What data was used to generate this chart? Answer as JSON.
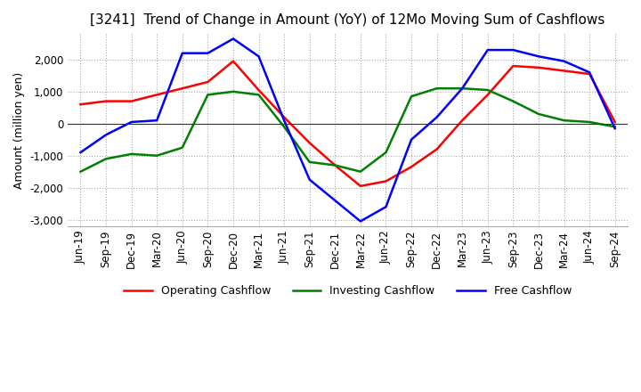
{
  "title": "[3241]  Trend of Change in Amount (YoY) of 12Mo Moving Sum of Cashflows",
  "ylabel": "Amount (million yen)",
  "ylim": [
    -3200,
    2800
  ],
  "yticks": [
    -3000,
    -2000,
    -1000,
    0,
    1000,
    2000
  ],
  "background_color": "#ffffff",
  "grid_color": "#aaaaaa",
  "x_labels": [
    "Jun-19",
    "Sep-19",
    "Dec-19",
    "Mar-20",
    "Jun-20",
    "Sep-20",
    "Dec-20",
    "Mar-21",
    "Jun-21",
    "Sep-21",
    "Dec-21",
    "Mar-22",
    "Jun-22",
    "Sep-22",
    "Dec-22",
    "Mar-23",
    "Jun-23",
    "Sep-23",
    "Dec-23",
    "Mar-24",
    "Jun-24",
    "Sep-24"
  ],
  "operating": [
    600,
    700,
    700,
    900,
    1100,
    1300,
    1950,
    1050,
    200,
    -600,
    -1300,
    -1950,
    -1800,
    -1350,
    -800,
    100,
    900,
    1800,
    1750,
    1650,
    1550,
    50
  ],
  "investing": [
    -1500,
    -1100,
    -950,
    -1000,
    -750,
    900,
    1000,
    900,
    -100,
    -1200,
    -1300,
    -1500,
    -900,
    850,
    1100,
    1100,
    1050,
    700,
    300,
    100,
    50,
    -100
  ],
  "free": [
    -900,
    -350,
    50,
    100,
    2200,
    2200,
    2650,
    2100,
    100,
    -1750,
    -2400,
    -3050,
    -2600,
    -500,
    200,
    1100,
    2300,
    2300,
    2100,
    1950,
    1600,
    -150
  ],
  "op_color": "#ff0000",
  "inv_color": "#008000",
  "free_color": "#0000ff",
  "line_width": 1.8,
  "title_fontsize": 11,
  "label_fontsize": 9,
  "tick_fontsize": 8.5
}
